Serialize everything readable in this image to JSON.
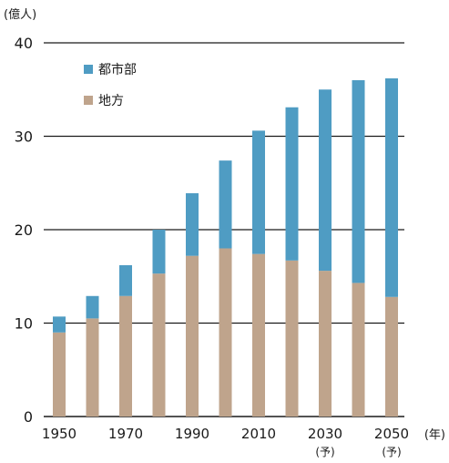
{
  "chart_data": {
    "type": "bar",
    "stacked": true,
    "y_unit_label": "(億人)",
    "x_unit_label": "(年)",
    "categories": [
      "1950",
      "1960",
      "1970",
      "1980",
      "1990",
      "2000",
      "2010",
      "2020",
      "2030",
      "2040",
      "2050"
    ],
    "x_tick_labels": [
      "1950",
      "",
      "1970",
      "",
      "1990",
      "",
      "2010",
      "",
      "2030",
      "",
      "2050"
    ],
    "projection_note": "(予)",
    "projection_note_categories": [
      "2030",
      "2050"
    ],
    "series": [
      {
        "name": "地方",
        "color": "#BFA48C",
        "values": [
          9.0,
          10.5,
          12.9,
          15.3,
          17.2,
          18.0,
          17.4,
          16.7,
          15.6,
          14.3,
          12.8
        ]
      },
      {
        "name": "都市部",
        "color": "#4F9CC3",
        "values": [
          1.7,
          2.4,
          3.3,
          4.7,
          6.7,
          9.4,
          13.2,
          16.4,
          19.4,
          21.7,
          23.4
        ]
      }
    ],
    "legend_order": [
      "都市部",
      "地方"
    ],
    "legend_position": "top-left",
    "ylim": [
      0,
      40
    ],
    "yticks": [
      0,
      10,
      20,
      30,
      40
    ],
    "grid": true,
    "grid_axis": "y"
  }
}
